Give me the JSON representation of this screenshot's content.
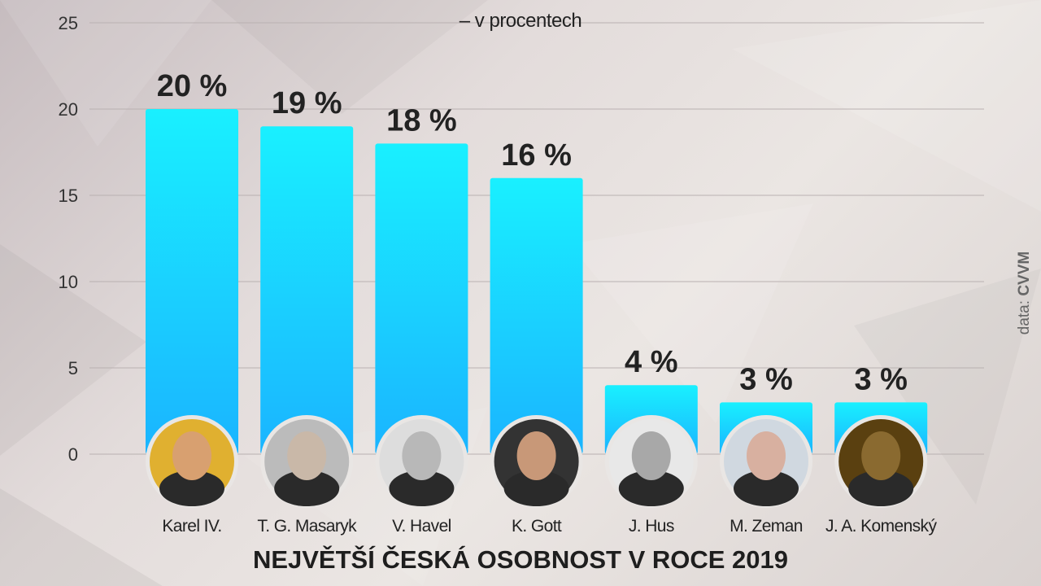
{
  "title": "NEJVĚTŠÍ ČESKÁ OSOBNOST V ROCE 2019",
  "subtitle": "– v procentech",
  "source": {
    "prefix": "data:",
    "name": "CVVM"
  },
  "colors": {
    "bar_top": "#19f0ff",
    "bar_bottom": "#1ab4ff",
    "text": "#222222"
  },
  "chart_data": {
    "type": "bar",
    "title": "NEJVĚTŠÍ ČESKÁ OSOBNOST V ROCE 2019",
    "subtitle": "– v procentech",
    "categories": [
      "Karel IV.",
      "T. G. Masaryk",
      "V. Havel",
      "K. Gott",
      "J. Hus",
      "M. Zeman",
      "J. A. Komenský"
    ],
    "values": [
      20,
      19,
      18,
      16,
      4,
      3,
      3
    ],
    "data_labels": [
      "20 %",
      "19 %",
      "18 %",
      "16 %",
      "4 %",
      "3 %",
      "3 %"
    ],
    "portrait_icons": [
      "karel-iv-portrait",
      "masaryk-portrait",
      "havel-portrait",
      "gott-portrait",
      "hus-portrait",
      "zeman-portrait",
      "komensky-portrait"
    ],
    "ylim": [
      0,
      25
    ],
    "yticks": [
      0,
      5,
      10,
      15,
      20,
      25
    ],
    "xlabel": "",
    "ylabel": "",
    "grid": true,
    "legend": "none"
  }
}
